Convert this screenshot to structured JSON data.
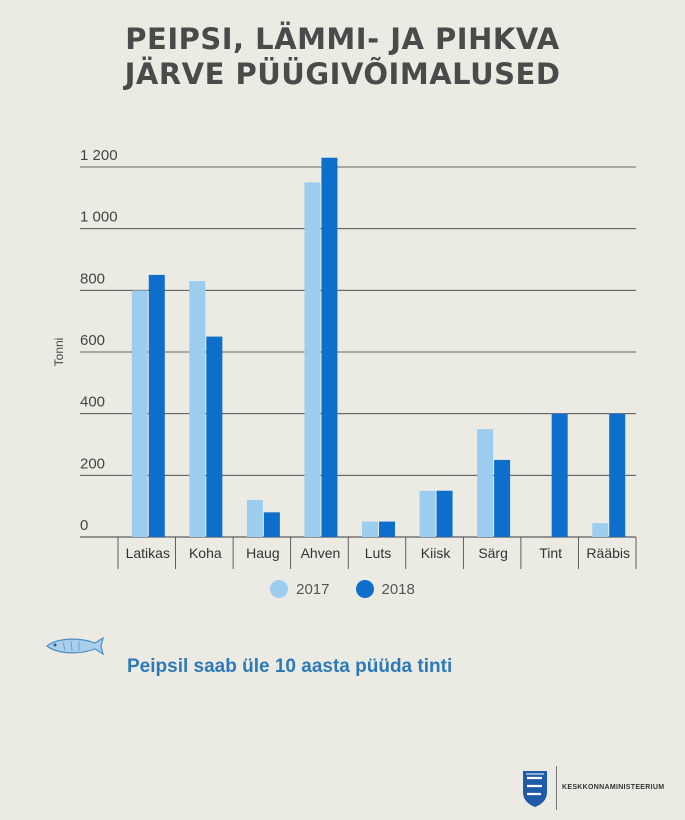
{
  "title_line1": "PEIPSI, LÄMMI- JA PIHKVA",
  "title_line2": "JÄRVE PÜÜGIVÕIMALUSED",
  "subtitle": "Peipsil saab üle 10 aasta püüda tinti",
  "footer_text": "KESKKONNAMINISTEERIUM",
  "fish_icon": "fish-icon",
  "coat_of_arms_icon": "estonian-coat-of-arms-icon",
  "chart_data": {
    "type": "bar",
    "ylabel": "Tonni",
    "xlabel": "",
    "ylim": [
      0,
      1200
    ],
    "yticks": [
      0,
      200,
      400,
      600,
      800,
      1000,
      1200
    ],
    "ytick_labels": [
      "0",
      "200",
      "400",
      "600",
      "800",
      "1 000",
      "1 200"
    ],
    "grid": true,
    "legend_position": "bottom",
    "categories": [
      "Latikas",
      "Koha",
      "Haug",
      "Ahven",
      "Luts",
      "Kiisk",
      "Särg",
      "Tint",
      "Rääbis"
    ],
    "series": [
      {
        "name": "2017",
        "color": "#9dcdee",
        "values": [
          800,
          830,
          120,
          1150,
          50,
          150,
          350,
          0,
          45
        ]
      },
      {
        "name": "2018",
        "color": "#0d6fcb",
        "values": [
          850,
          650,
          80,
          1230,
          50,
          150,
          250,
          400,
          400
        ]
      }
    ]
  }
}
